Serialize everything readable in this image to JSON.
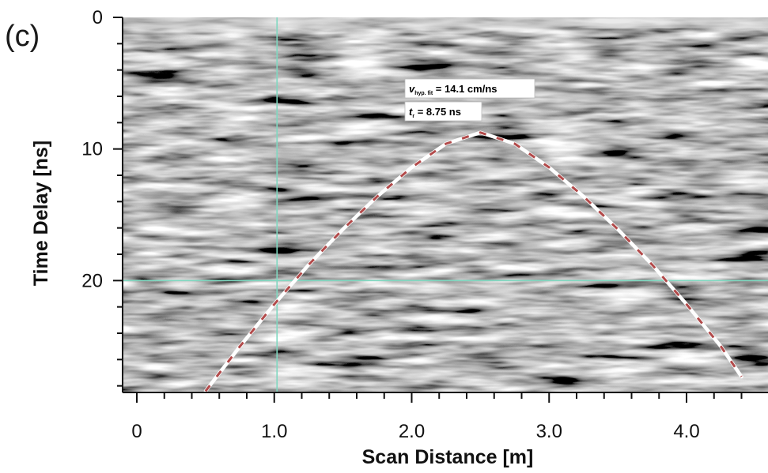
{
  "panel_label": "(c)",
  "chart_data": {
    "type": "scatter",
    "title": "",
    "xlabel": "Scan Distance [m]",
    "ylabel": "Time Delay [ns]",
    "xlim": [
      -0.05,
      4.6
    ],
    "ylim": [
      0,
      28.5
    ],
    "y_inverted": true,
    "x_ticks": [
      0,
      1.0,
      2.0,
      3.0,
      4.0
    ],
    "x_tick_labels": [
      "0",
      "1.0",
      "2.0",
      "3.0",
      "4.0"
    ],
    "x_minor_step": 0.2,
    "y_ticks": [
      0,
      10,
      20
    ],
    "y_tick_labels": [
      "0",
      "10",
      "20"
    ],
    "y_minor_step": 2,
    "background": "GPR radargram (grayscale)",
    "crosshair": {
      "x": 1.02,
      "y": 20,
      "color": "#7fd8c0"
    },
    "hyperbola_fit": {
      "name": "",
      "apex_x": 2.5,
      "t0": 8.75,
      "velocity_cm_per_ns": 14.1,
      "line_color": "#ffffff",
      "dash_color": "#b24a4a",
      "x": [
        0.5,
        0.75,
        1.0,
        1.25,
        1.5,
        1.75,
        2.0,
        2.25,
        2.5,
        2.75,
        3.0,
        3.25,
        3.5,
        3.75,
        4.0,
        4.25,
        4.4
      ],
      "y": [
        28.4,
        25.0,
        21.8,
        18.8,
        16.1,
        13.6,
        11.4,
        9.6,
        8.75,
        9.6,
        11.4,
        13.6,
        16.1,
        18.8,
        21.8,
        25.0,
        27.3
      ]
    },
    "annotations": [
      {
        "symbol": "v",
        "subscript": "hyp. fit",
        "text": " = 14.1 cm/ns"
      },
      {
        "symbol": "t",
        "subscript": "r",
        "text": " = 8.75 ns"
      }
    ]
  }
}
